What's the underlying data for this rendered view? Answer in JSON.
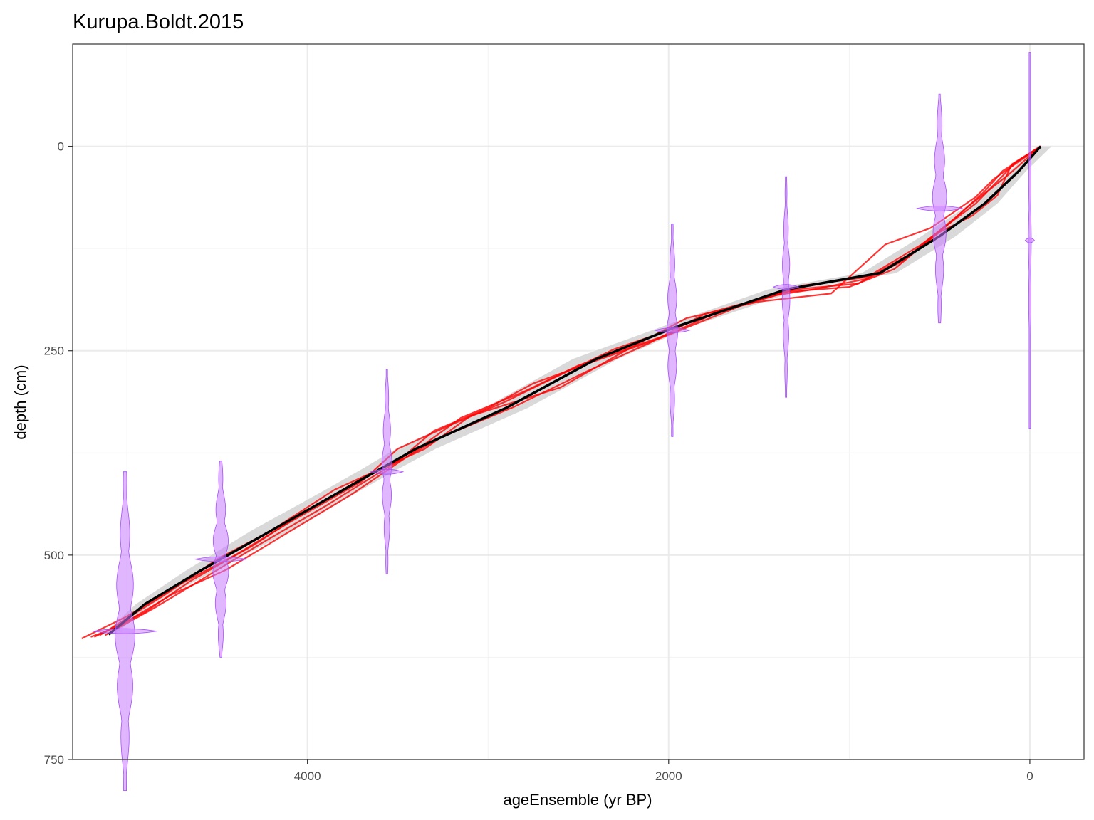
{
  "chart_data": {
    "type": "line",
    "title": "Kurupa.Boldt.2015",
    "xlabel": "ageEnsemble (yr BP)",
    "ylabel": "depth (cm)",
    "x_reversed": true,
    "y_reversed": true,
    "xlim": [
      5300,
      -300
    ],
    "ylim": [
      -125,
      750
    ],
    "x_ticks": [
      4000,
      2000,
      0
    ],
    "x_tick_labels": [
      "4000",
      "2000",
      "0"
    ],
    "y_ticks": [
      0,
      250,
      500,
      750
    ],
    "y_tick_labels": [
      "0",
      "250",
      "500",
      "750"
    ],
    "grid": true,
    "colors": {
      "median": "#000000",
      "band": "#d9d9d9",
      "ensemble": "#ff0000",
      "dates": "#c77cff"
    },
    "median": {
      "age": [
        -60,
        60,
        250,
        500,
        830,
        1350,
        1950,
        2400,
        2900,
        3400,
        3600,
        3800,
        4200,
        4600,
        4900,
        5100
      ],
      "depth": [
        0,
        30,
        70,
        110,
        155,
        175,
        220,
        260,
        320,
        370,
        395,
        420,
        470,
        520,
        560,
        597
      ]
    },
    "uncertainty_band": {
      "age": [
        -60,
        60,
        250,
        500,
        830,
        1350,
        1950,
        2400,
        2900,
        3400,
        3600,
        3800,
        4200,
        4600,
        4900,
        5100
      ],
      "lower": [
        -120,
        20,
        180,
        410,
        740,
        1270,
        1870,
        2280,
        2780,
        3290,
        3500,
        3700,
        4090,
        4520,
        4860,
        5070
      ],
      "upper": [
        -40,
        110,
        330,
        600,
        930,
        1450,
        2030,
        2530,
        3020,
        3510,
        3700,
        3900,
        4310,
        4680,
        4950,
        5130
      ]
    },
    "ensemble_members": [
      {
        "age": [
          -60,
          100,
          180,
          320,
          500,
          700,
          900,
          1200,
          1400,
          1700,
          2000,
          2300,
          2700,
          2900,
          3200,
          3500,
          3700,
          4100,
          4400,
          4700,
          5000,
          5250
        ],
        "depth": [
          0,
          22,
          60,
          85,
          105,
          140,
          162,
          175,
          182,
          200,
          225,
          248,
          290,
          312,
          340,
          370,
          410,
          460,
          500,
          535,
          575,
          602
        ]
      },
      {
        "age": [
          -60,
          150,
          250,
          400,
          650,
          950,
          1300,
          1600,
          2050,
          2400,
          2750,
          3000,
          3300,
          3500,
          3850,
          4200,
          4500,
          4800,
          5150
        ],
        "depth": [
          0,
          30,
          55,
          85,
          130,
          168,
          175,
          195,
          235,
          262,
          290,
          320,
          348,
          385,
          420,
          470,
          505,
          550,
          598
        ]
      },
      {
        "age": [
          -60,
          200,
          300,
          550,
          800,
          1100,
          1500,
          1900,
          2200,
          2600,
          3100,
          3350,
          3650,
          4000,
          4300,
          4650,
          4900,
          5180
        ],
        "depth": [
          0,
          40,
          62,
          100,
          120,
          180,
          190,
          210,
          245,
          295,
          330,
          370,
          400,
          445,
          488,
          532,
          570,
          600
        ]
      },
      {
        "age": [
          -60,
          80,
          300,
          600,
          900,
          1250,
          1700,
          2000,
          2500,
          2800,
          3150,
          3450,
          3750,
          4150,
          4450,
          4750,
          5050,
          5200
        ],
        "depth": [
          0,
          20,
          70,
          120,
          160,
          170,
          200,
          230,
          268,
          300,
          332,
          380,
          425,
          478,
          518,
          548,
          588,
          600
        ]
      },
      {
        "age": [
          -60,
          120,
          350,
          450,
          750,
          1000,
          1350,
          1800,
          2100,
          2450,
          2850,
          3250,
          3550,
          3900,
          4250,
          4550,
          4850,
          5120
        ],
        "depth": [
          0,
          35,
          75,
          95,
          150,
          172,
          178,
          205,
          240,
          275,
          318,
          355,
          392,
          440,
          485,
          525,
          565,
          598
        ]
      }
    ],
    "radiocarbon_dates": [
      {
        "age": 0,
        "depth": 115,
        "spread": 8,
        "half_width": 230
      },
      {
        "age": 500,
        "depth": 76,
        "spread": 40,
        "half_width": 140
      },
      {
        "age": 1350,
        "depth": 172,
        "spread": 22,
        "half_width": 135
      },
      {
        "age": 1980,
        "depth": 225,
        "spread": 30,
        "half_width": 130
      },
      {
        "age": 3560,
        "depth": 398,
        "spread": 28,
        "half_width": 125
      },
      {
        "age": 4480,
        "depth": 505,
        "spread": 45,
        "half_width": 120
      },
      {
        "age": 5010,
        "depth": 593,
        "spread": 55,
        "half_width": 195
      }
    ]
  }
}
